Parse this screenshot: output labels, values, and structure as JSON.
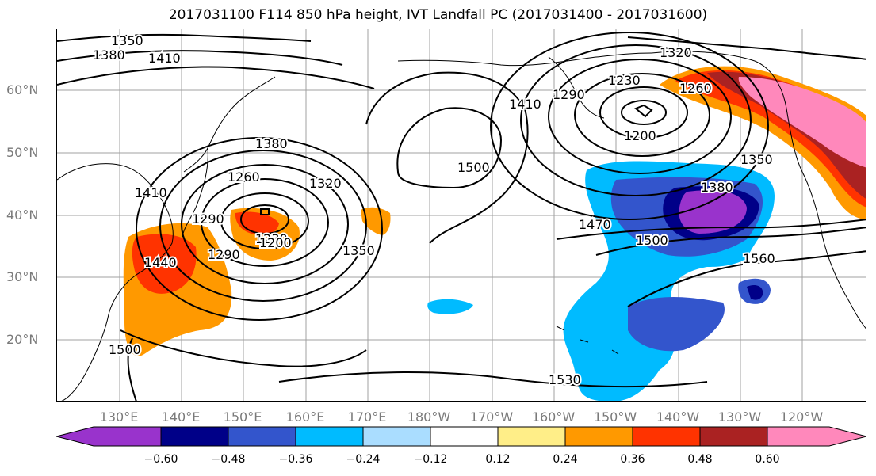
{
  "title": "2017031100 F114 850 hPa height, IVT Landfall PC (2017031400 - 2017031600)",
  "lat_labels": [
    "60°N",
    "50°N",
    "40°N",
    "30°N",
    "20°N"
  ],
  "lon_labels": [
    "130°E",
    "140°E",
    "150°E",
    "160°E",
    "170°E",
    "180°W",
    "170°W",
    "160°W",
    "150°W",
    "140°W",
    "130°W",
    "120°W"
  ],
  "contour_labels": [
    "1350",
    "1380",
    "1410",
    "1260",
    "1380",
    "1320",
    "1230",
    "1290",
    "1200",
    "1350",
    "1410",
    "1440",
    "1290",
    "1500",
    "1320",
    "1230",
    "1260",
    "1290",
    "1410",
    "1200",
    "1350",
    "1380",
    "1470",
    "1500",
    "1560",
    "1530",
    "1500"
  ],
  "colorbar": {
    "ticks": [
      "−0.60",
      "−0.48",
      "−0.36",
      "−0.24",
      "−0.12",
      "0.12",
      "0.24",
      "0.36",
      "0.48",
      "0.60"
    ],
    "colors": [
      "#9933cc",
      "#000088",
      "#3355cc",
      "#00bbff",
      "#aaddff",
      "#ffffff",
      "#ffee88",
      "#ff9900",
      "#ff3300",
      "#aa2222",
      "#ff88bb"
    ]
  }
}
